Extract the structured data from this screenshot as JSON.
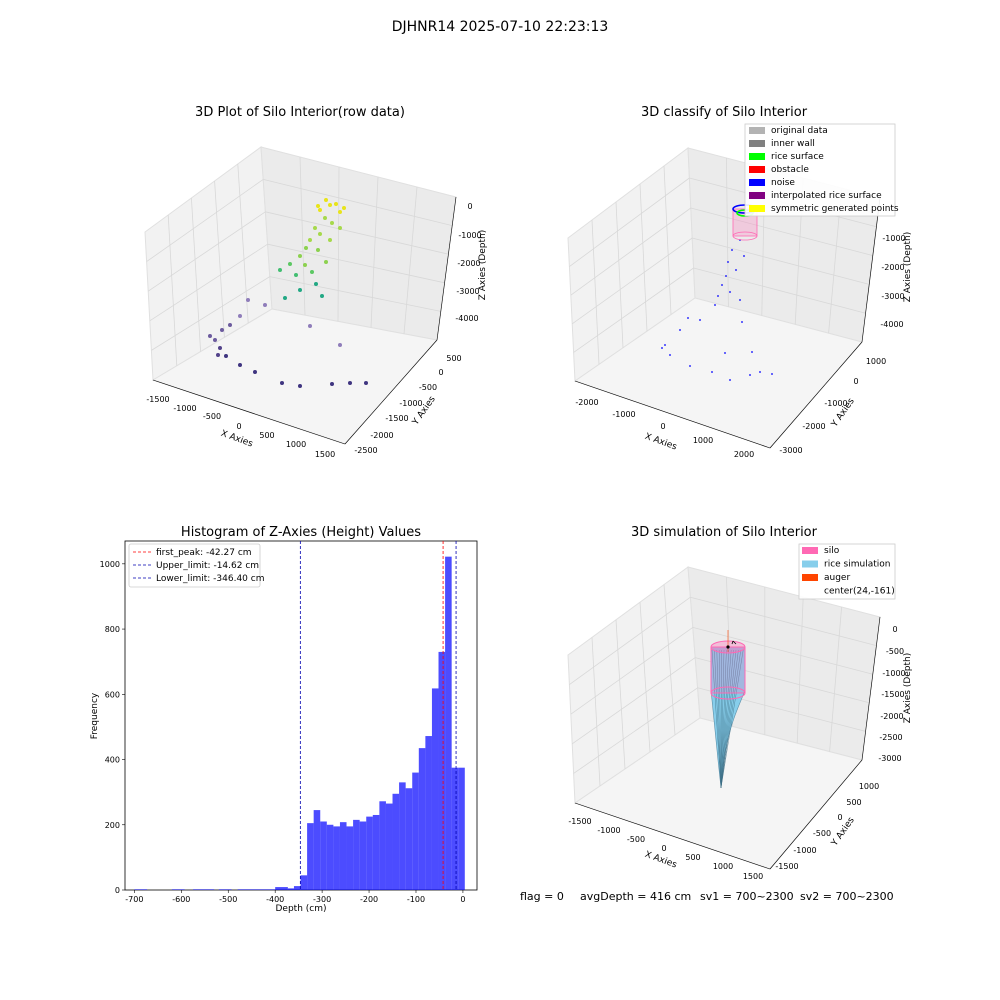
{
  "figure": {
    "title": "DJHNR14 2025-07-10 22:23:13"
  },
  "panels": [
    {
      "title": "3D Plot of Silo Interior(row data)",
      "xlabel": "X Axies",
      "ylabel": "Y Axies",
      "zlabel": "Z Axies (Depth)",
      "x_ticks": [
        "-1500",
        "-1000",
        "-500",
        "0",
        "500",
        "1000",
        "1500"
      ],
      "y_ticks": [
        "500",
        "0",
        "-500",
        "-1000",
        "-1500",
        "-2000",
        "-2500"
      ],
      "z_ticks": [
        "0",
        "-1000",
        "-2000",
        "-3000",
        "-4000"
      ]
    },
    {
      "title": "3D classify of Silo Interior",
      "xlabel": "X Axies",
      "ylabel": "Y Axies",
      "zlabel": "Z Axies (Depth)",
      "x_ticks": [
        "-2000",
        "-1000",
        "0",
        "1000",
        "2000"
      ],
      "y_ticks": [
        "1000",
        "0",
        "-1000",
        "-2000",
        "-3000"
      ],
      "z_ticks": [
        "-1000",
        "-2000",
        "-3000",
        "-4000"
      ],
      "legend": [
        {
          "label": "original data",
          "color": "#b3b3b3"
        },
        {
          "label": "inner wall",
          "color": "#808080"
        },
        {
          "label": "rice surface",
          "color": "#00ff00"
        },
        {
          "label": "obstacle",
          "color": "#ff0000"
        },
        {
          "label": "noise",
          "color": "#0000ff"
        },
        {
          "label": "interpolated rice surface",
          "color": "#800080"
        },
        {
          "label": "symmetric generated points",
          "color": "#ffff00"
        }
      ]
    },
    {
      "title": "3D simulation of Silo Interior",
      "xlabel": "X Axies",
      "ylabel": "Y Axies",
      "zlabel": "Z Axies (Depth)",
      "x_ticks": [
        "-1500",
        "-1000",
        "-500",
        "0",
        "500",
        "1000",
        "1500"
      ],
      "y_ticks": [
        "1000",
        "500",
        "0",
        "-500",
        "-1000",
        "-1500"
      ],
      "z_ticks": [
        "0",
        "-500",
        "-1000",
        "-1500",
        "-2000",
        "-2500",
        "-3000"
      ],
      "legend": [
        {
          "label": "silo",
          "color": "#ff69b4"
        },
        {
          "label": "rice simulation",
          "color": "#87ceeb"
        },
        {
          "label": "auger",
          "color": "#ff4500"
        },
        {
          "label": "center(24,-161)",
          "color": "none"
        }
      ]
    }
  ],
  "chart_data": {
    "type": "bar",
    "title": "Histogram of Z-Axies (Height) Values",
    "xlabel": "Depth (cm)",
    "ylabel": "Frequency",
    "xlim": [
      -720,
      30
    ],
    "ylim": [
      0,
      1070
    ],
    "x_ticks": [
      -700,
      -600,
      -500,
      -400,
      -300,
      -200,
      -100,
      0
    ],
    "y_ticks": [
      0,
      200,
      400,
      600,
      800,
      1000
    ],
    "bar_color": "#0000ff",
    "bins": [
      {
        "x0": -700,
        "x1": -673,
        "count": 2
      },
      {
        "x0": -620,
        "x1": -593,
        "count": 2
      },
      {
        "x0": -575,
        "x1": -530,
        "count": 2
      },
      {
        "x0": -520,
        "x1": -493,
        "count": 2
      },
      {
        "x0": -480,
        "x1": -400,
        "count": 2
      },
      {
        "x0": -400,
        "x1": -373,
        "count": 9
      },
      {
        "x0": -373,
        "x1": -360,
        "count": 5
      },
      {
        "x0": -360,
        "x1": -346,
        "count": 12
      },
      {
        "x0": -346,
        "x1": -332,
        "count": 45
      },
      {
        "x0": -332,
        "x1": -318,
        "count": 205
      },
      {
        "x0": -318,
        "x1": -304,
        "count": 245
      },
      {
        "x0": -304,
        "x1": -290,
        "count": 210
      },
      {
        "x0": -290,
        "x1": -276,
        "count": 200
      },
      {
        "x0": -276,
        "x1": -262,
        "count": 195
      },
      {
        "x0": -262,
        "x1": -248,
        "count": 208
      },
      {
        "x0": -248,
        "x1": -234,
        "count": 195
      },
      {
        "x0": -234,
        "x1": -220,
        "count": 215
      },
      {
        "x0": -220,
        "x1": -206,
        "count": 210
      },
      {
        "x0": -206,
        "x1": -192,
        "count": 225
      },
      {
        "x0": -192,
        "x1": -178,
        "count": 230
      },
      {
        "x0": -178,
        "x1": -164,
        "count": 272
      },
      {
        "x0": -164,
        "x1": -150,
        "count": 265
      },
      {
        "x0": -150,
        "x1": -136,
        "count": 295
      },
      {
        "x0": -136,
        "x1": -122,
        "count": 330
      },
      {
        "x0": -122,
        "x1": -108,
        "count": 312
      },
      {
        "x0": -108,
        "x1": -94,
        "count": 360
      },
      {
        "x0": -94,
        "x1": -80,
        "count": 435
      },
      {
        "x0": -80,
        "x1": -66,
        "count": 472
      },
      {
        "x0": -66,
        "x1": -52,
        "count": 618
      },
      {
        "x0": -52,
        "x1": -38,
        "count": 730
      },
      {
        "x0": -38,
        "x1": -24,
        "count": 1022
      },
      {
        "x0": -24,
        "x1": -10,
        "count": 375
      },
      {
        "x0": -10,
        "x1": 4,
        "count": 375
      }
    ],
    "vlines": [
      {
        "label": "first_peak: -42.27 cm",
        "x": -42.27,
        "color": "#ff0000"
      },
      {
        "label": "Upper_limit: -14.62 cm",
        "x": -14.62,
        "color": "#0000b0"
      },
      {
        "label": "Lower_limit: -346.40 cm",
        "x": -346.4,
        "color": "#0000b0"
      }
    ]
  },
  "status": {
    "flag": "flag = 0",
    "avg": "avgDepth = 416 cm",
    "sv1": "sv1 = 700~2300",
    "sv2": "sv2 = 700~2300"
  }
}
